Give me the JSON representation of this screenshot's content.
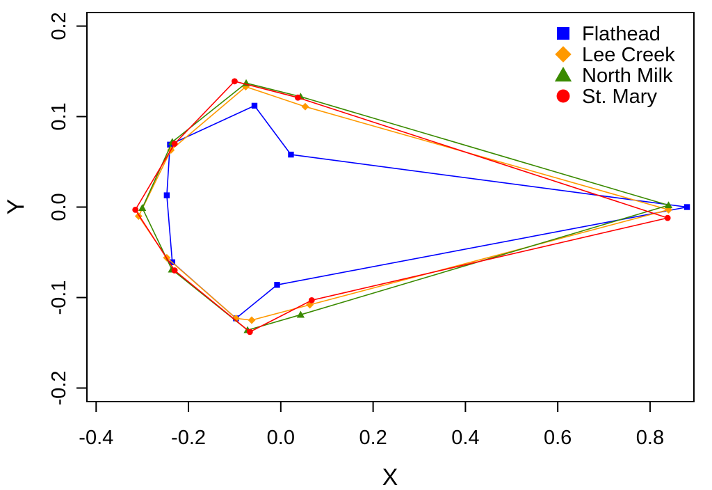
{
  "chart_data": {
    "type": "line",
    "title": "",
    "xlabel": "X",
    "ylabel": "Y",
    "xlim": [
      -0.42,
      0.895
    ],
    "ylim": [
      -0.215,
      0.215
    ],
    "x_ticks": [
      -0.4,
      -0.2,
      0.0,
      0.2,
      0.4,
      0.6,
      0.8
    ],
    "x_tick_labels": [
      "-0.4",
      "-0.2",
      "0.0",
      "0.2",
      "0.4",
      "0.6",
      "0.8"
    ],
    "y_ticks": [
      -0.2,
      -0.1,
      0.0,
      0.1,
      0.2
    ],
    "y_tick_labels": [
      "-0.2",
      "-0.1",
      "0.0",
      "0.1",
      "0.2"
    ],
    "grid": false,
    "legend_position": "top-right",
    "series": [
      {
        "name": "Flathead",
        "color": "#0000ff",
        "marker": "square",
        "x": [
          0.88,
          0.022,
          -0.057,
          -0.24,
          -0.247,
          -0.235,
          -0.097,
          -0.008,
          0.88
        ],
        "y": [
          0.0,
          0.058,
          0.112,
          0.069,
          0.013,
          -0.061,
          -0.123,
          -0.086,
          0.0
        ]
      },
      {
        "name": "Lee Creek",
        "color": "#ff9900",
        "marker": "diamond",
        "x": [
          0.84,
          0.053,
          -0.076,
          -0.238,
          -0.308,
          -0.247,
          -0.097,
          -0.063,
          0.063,
          0.84
        ],
        "y": [
          -0.003,
          0.111,
          0.133,
          0.063,
          -0.01,
          -0.056,
          -0.123,
          -0.125,
          -0.108,
          -0.003
        ]
      },
      {
        "name": "North Milk",
        "color": "#3a8a00",
        "marker": "triangle",
        "x": [
          0.84,
          0.043,
          -0.075,
          -0.235,
          -0.3,
          -0.236,
          -0.072,
          0.043,
          0.84
        ],
        "y": [
          0.002,
          0.122,
          0.137,
          0.072,
          -0.001,
          -0.069,
          -0.136,
          -0.119,
          0.002
        ]
      },
      {
        "name": "St. Mary",
        "color": "#ff0000",
        "marker": "circle",
        "x": [
          0.838,
          0.037,
          -0.1,
          -0.23,
          -0.315,
          -0.23,
          -0.067,
          0.067,
          0.838
        ],
        "y": [
          -0.012,
          0.121,
          0.139,
          0.07,
          -0.003,
          -0.07,
          -0.138,
          -0.103,
          -0.012
        ]
      }
    ]
  }
}
